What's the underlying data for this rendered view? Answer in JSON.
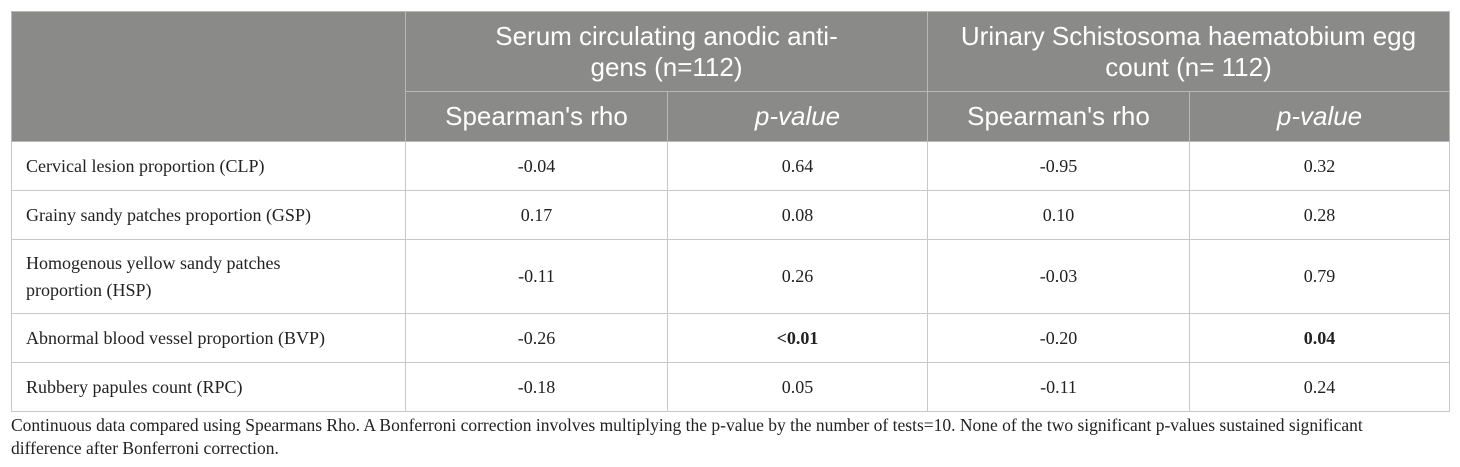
{
  "table": {
    "header": {
      "groups": [
        {
          "line1": "Serum circulating anodic anti-",
          "line2": "gens (n=112)"
        },
        {
          "line1": "Urinary Schistosoma haematobium egg",
          "line2": "count (n= 112)"
        }
      ],
      "subheaders": [
        "Spearman's rho",
        "p-value",
        "Spearman's rho",
        "p-value"
      ]
    },
    "rows": [
      {
        "label": "Cervical lesion proportion (CLP)",
        "values": [
          "-0.04",
          "0.64",
          "-0.95",
          "0.32"
        ]
      },
      {
        "label": "Grainy sandy patches proportion (GSP)",
        "values": [
          "0.17",
          "0.08",
          "0.10",
          "0.28"
        ]
      },
      {
        "label_line1": "Homogenous yellow sandy patches",
        "label_line2": "proportion (HSP)",
        "values": [
          "-0.11",
          "0.26",
          "-0.03",
          "0.79"
        ]
      },
      {
        "label": "Abnormal blood vessel proportion (BVP)",
        "values": [
          "-0.26",
          "<0.01",
          "-0.20",
          "0.04"
        ]
      },
      {
        "label": "Rubbery papules count (RPC)",
        "values": [
          "-0.18",
          "0.05",
          "-0.11",
          "0.24"
        ]
      }
    ]
  },
  "footnote": {
    "line1": "Continuous data compared using Spearmans Rho. A Bonferroni correction involves multiplying the p-value by the number of tests=10. None of the two significant p-values sustained significant",
    "line2": "difference after Bonferroni correction."
  }
}
